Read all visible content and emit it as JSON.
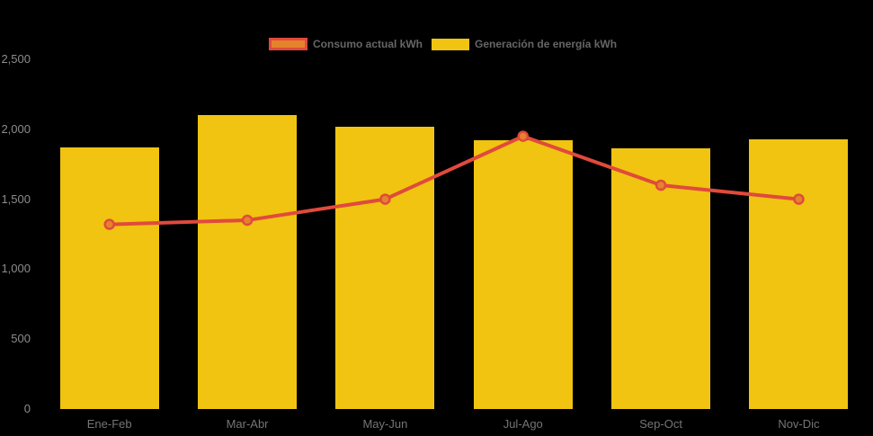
{
  "legend": {
    "position": "top"
  },
  "axis": {
    "y_tick_labels": [
      "0",
      "500",
      "1,000",
      "1,500",
      "2,000",
      "2,500"
    ]
  },
  "colors": {
    "background": "#000000",
    "bar_fill": "#f0c411",
    "line_stroke": "#e04a3c",
    "marker_fill": "#e5832c",
    "legend_text": "#666666",
    "y_tick_text": "#8c8c8c",
    "x_tick_text": "#757575"
  },
  "chart_data": {
    "type": "bar",
    "subtype": "bar-with-line-overlay",
    "title": "",
    "xlabel": "",
    "ylabel": "",
    "categories": [
      "Ene-Feb",
      "Mar-Abr",
      "May-Jun",
      "Jul-Ago",
      "Sep-Oct",
      "Nov-Dic"
    ],
    "series": [
      {
        "name": "Consumo actual kWh",
        "type": "line",
        "color": "#e04a3c",
        "marker_color": "#e5832c",
        "values": [
          1320,
          1350,
          1500,
          1950,
          1600,
          1500
        ]
      },
      {
        "name": "Generación de energía kWh",
        "type": "bar",
        "color": "#f0c411",
        "values": [
          1870,
          2100,
          2020,
          1920,
          1865,
          1930
        ]
      }
    ],
    "ylim": [
      0,
      2500
    ],
    "y_tick_values": [
      0,
      500,
      1000,
      1500,
      2000,
      2500
    ],
    "y_tick_labels": [
      "0",
      "500",
      "1,000",
      "1,500",
      "2,000",
      "2,500"
    ],
    "legend_position": "top",
    "grid": false,
    "background": "#000000"
  }
}
